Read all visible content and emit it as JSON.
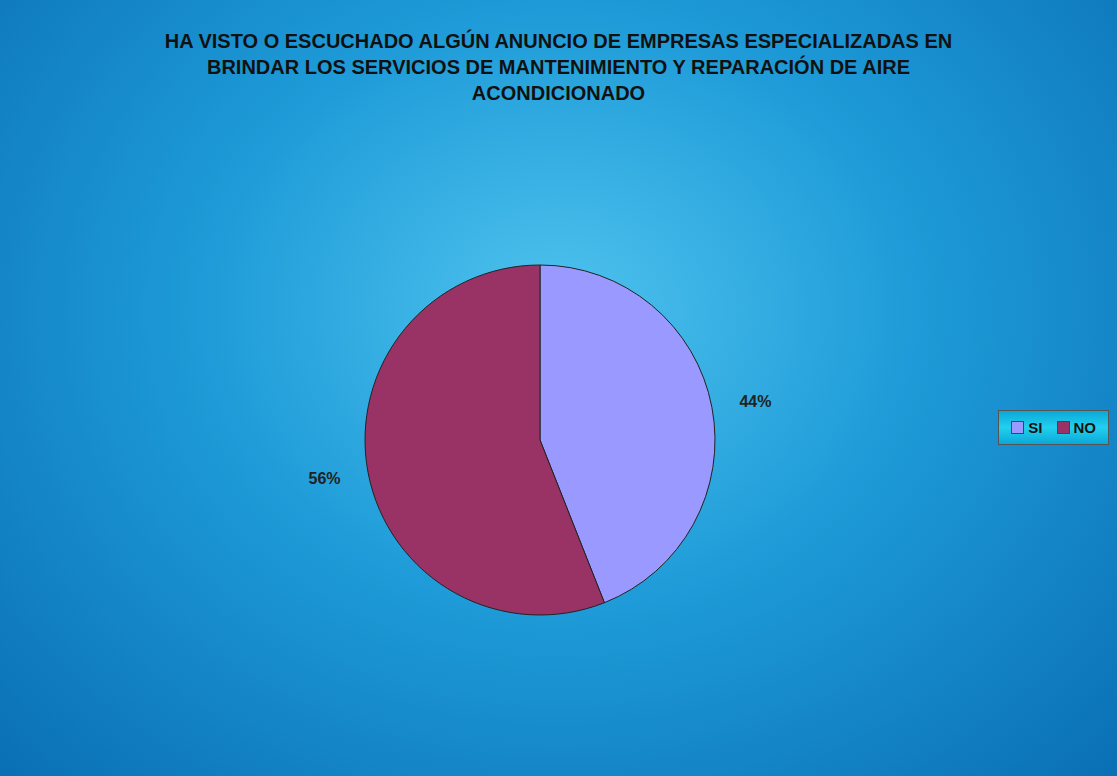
{
  "chart_data": {
    "type": "pie",
    "title": "HA VISTO O ESCUCHADO ALGÚN ANUNCIO DE EMPRESAS ESPECIALIZADAS EN BRINDAR LOS SERVICIOS DE MANTENIMIENTO Y REPARACIÓN DE AIRE ACONDICIONADO",
    "categories": [
      "SI",
      "NO"
    ],
    "values": [
      44,
      56
    ],
    "value_labels": [
      "44%",
      "56%"
    ],
    "colors": [
      "#9999ff",
      "#993366"
    ],
    "data_labels": true,
    "legend": "right"
  }
}
